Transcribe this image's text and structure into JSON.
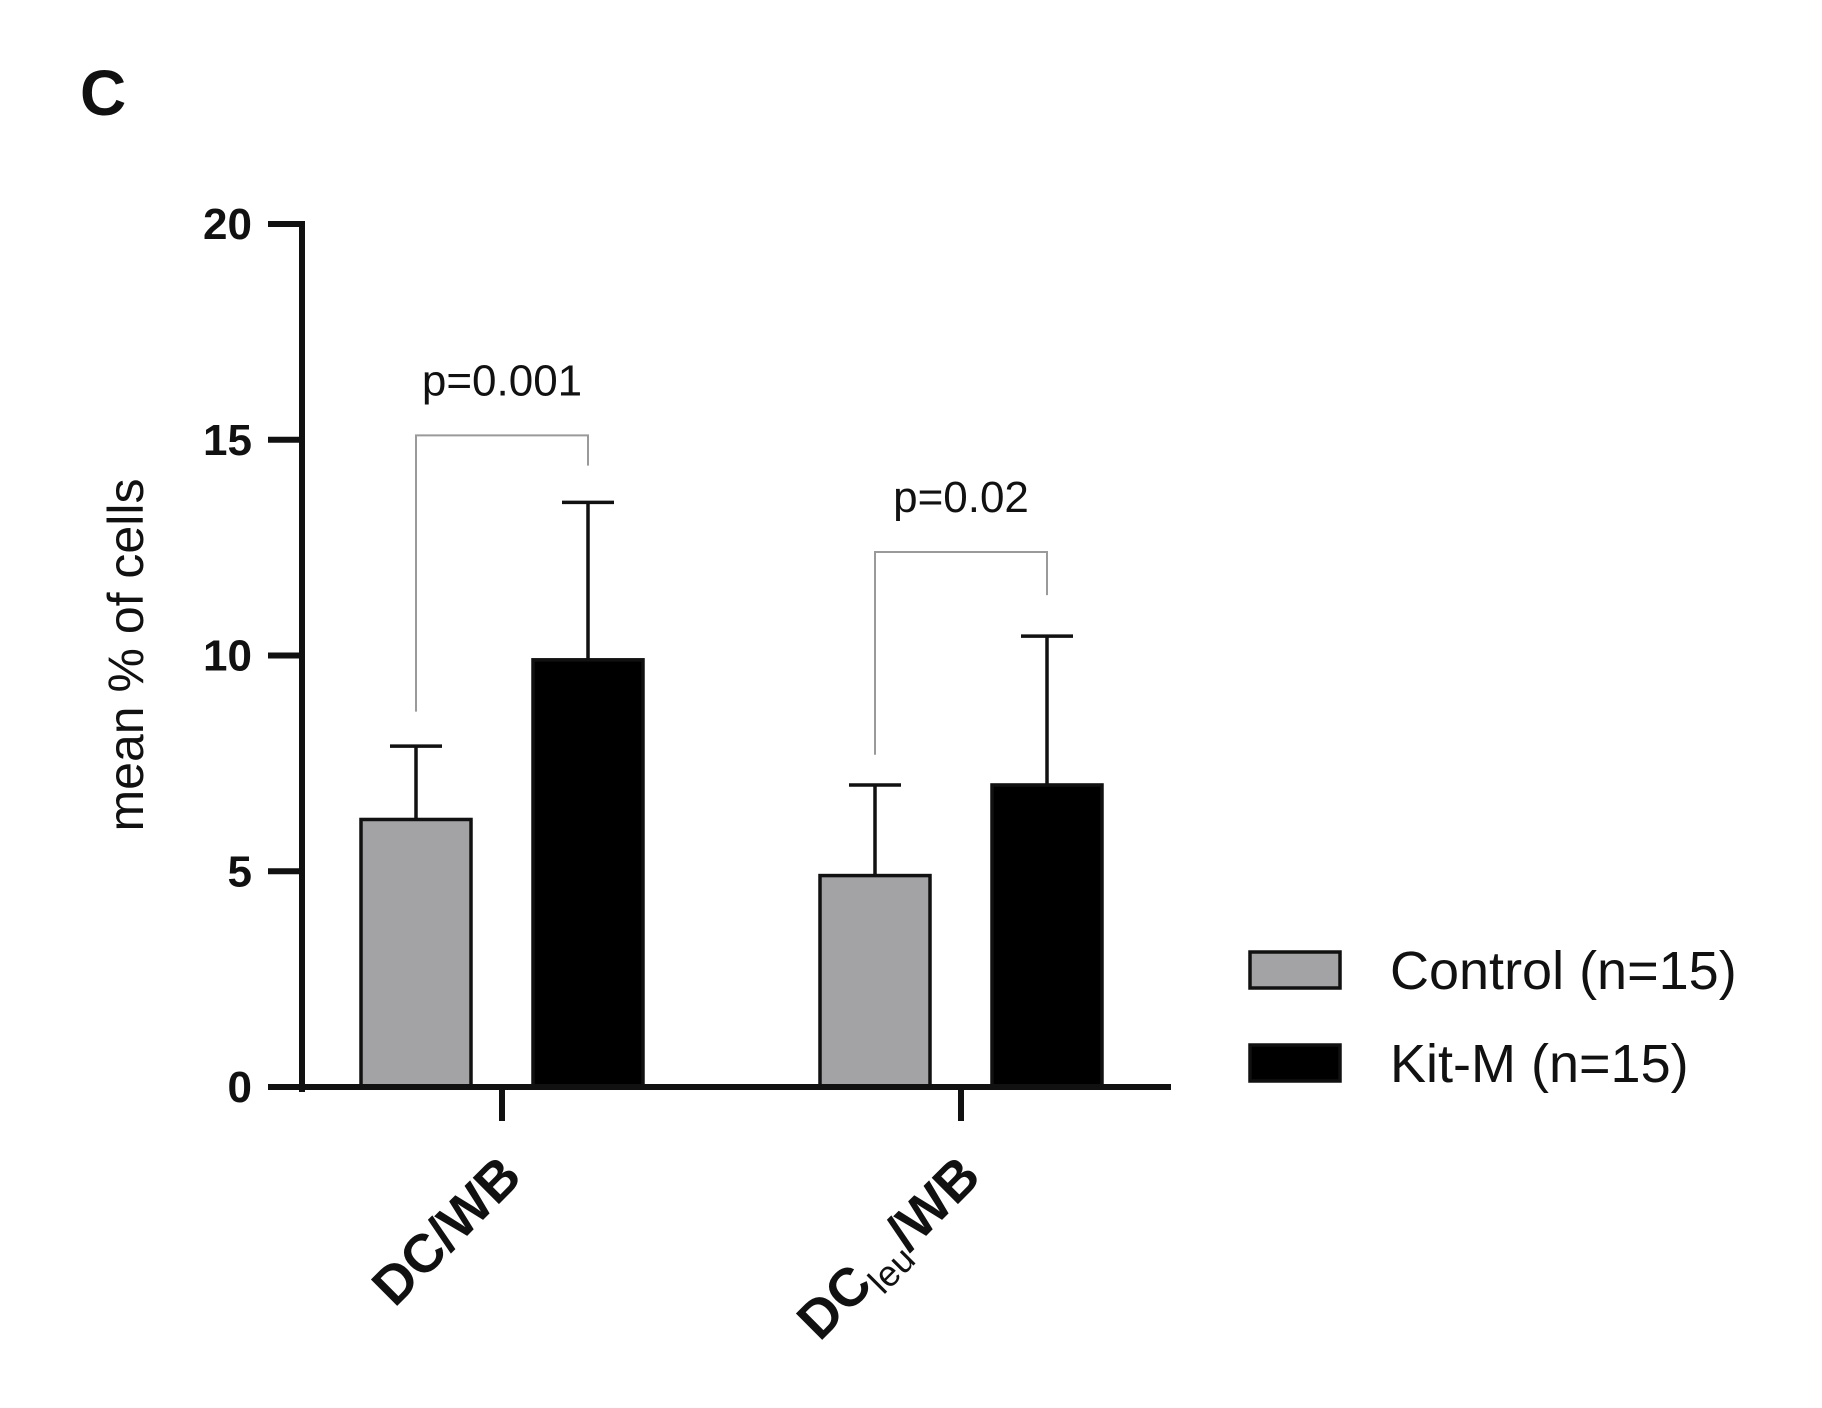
{
  "panel_letter": "C",
  "colors": {
    "control": "#a3a3a6",
    "kit_m": "#000000",
    "axis": "#111111",
    "bracket": "#9a9a9a"
  },
  "chart_data": {
    "type": "bar",
    "categories": [
      {
        "main": "DC",
        "sub": "",
        "tail": "/WB"
      },
      {
        "main": "DC",
        "sub": "leu",
        "tail": "/WB"
      }
    ],
    "series": [
      {
        "name": "Control (n=15)",
        "values": [
          6.2,
          4.9
        ],
        "error_upper": [
          1.7,
          2.1
        ],
        "color_key": "control"
      },
      {
        "name": "Kit-M (n=15)",
        "values": [
          9.9,
          7.0
        ],
        "error_upper": [
          3.65,
          3.45
        ],
        "color_key": "kit_m"
      }
    ],
    "ylabel": "mean % of cells",
    "ylim": [
      0,
      20
    ],
    "yticks": [
      0,
      5,
      10,
      15,
      20
    ],
    "significance": [
      {
        "category_index": 0,
        "label": "p=0.001",
        "left_y": 8.7,
        "right_y": 14.4,
        "bar_y": 15.1
      },
      {
        "category_index": 1,
        "label": "p=0.02",
        "left_y": 7.7,
        "right_y": 11.4,
        "bar_y": 12.4
      }
    ],
    "legend_position": "right"
  }
}
